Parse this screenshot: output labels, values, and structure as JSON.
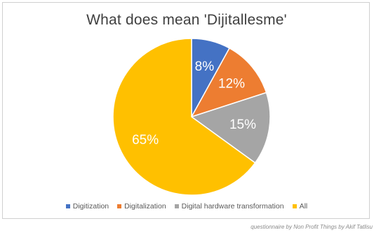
{
  "chart_data": {
    "type": "pie",
    "title": "What does mean 'Dijitallesme'",
    "categories": [
      "Digitization",
      "Digitalization",
      "Digital hardware transformation",
      "All"
    ],
    "values": [
      8,
      12,
      15,
      65
    ],
    "labels": [
      "8%",
      "12%",
      "15%",
      "65%"
    ],
    "colors": [
      "#4472C4",
      "#ED7D31",
      "#A5A5A5",
      "#FFC000"
    ],
    "legend_position": "bottom",
    "start_angle": "top, clockwise"
  },
  "source": "questionnaire by Non Profit Things by Akif Tatlisu"
}
